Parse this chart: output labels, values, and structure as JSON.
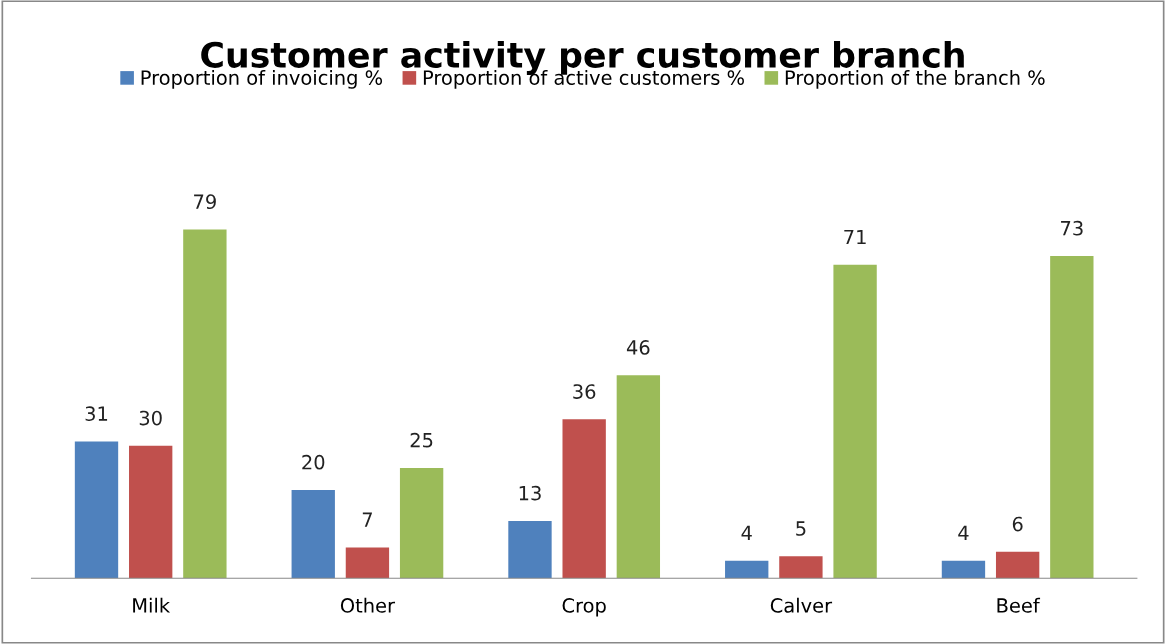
{
  "chart_data": {
    "type": "bar",
    "title": "Customer activity per customer branch",
    "categories": [
      "Milk",
      "Other",
      "Crop",
      "Calver",
      "Beef"
    ],
    "series": [
      {
        "name": "Proportion of invoicing %",
        "color": "#4f81bd",
        "values": [
          31,
          20,
          13,
          4,
          4
        ]
      },
      {
        "name": "Proportion of active customers %",
        "color": "#c0504d",
        "values": [
          30,
          7,
          36,
          5,
          6
        ]
      },
      {
        "name": "Proportion of the branch %",
        "color": "#9bbb59",
        "values": [
          79,
          25,
          46,
          71,
          73
        ]
      }
    ],
    "data_labels": true,
    "legend": "top",
    "grid": false
  }
}
